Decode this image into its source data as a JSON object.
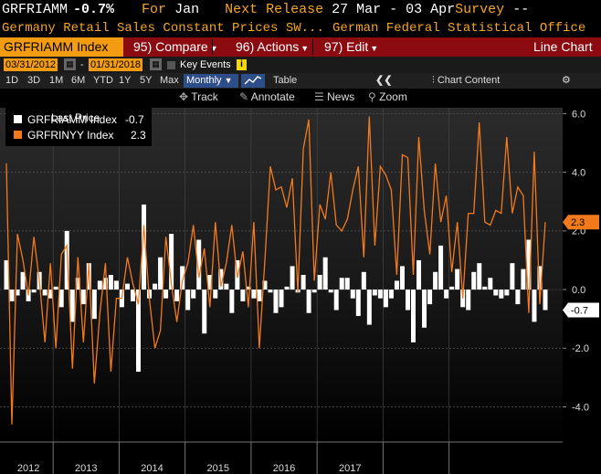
{
  "header": {
    "ticker": "GRFRIAMM",
    "value": "-0.7%",
    "for_label": "For",
    "period": "Jan",
    "next_release_label": "Next Release",
    "next_release": "27 Mar - 03 Apr",
    "survey_label": "Survey",
    "survey_value": "--"
  },
  "subheader": {
    "description": "Germany Retail Sales Constant Prices SW...",
    "source": "German Federal Statistical Office"
  },
  "menubar": {
    "security": "GRFRIAMM Index",
    "compare": "95) Compare",
    "actions": "96) Actions",
    "edit": "97) Edit",
    "chart_type": "Line Chart"
  },
  "datebar": {
    "start": "03/31/2012",
    "dash": "-",
    "end": "01/31/2018",
    "key_events": "Key Events"
  },
  "periods": {
    "items": [
      "1D",
      "3D",
      "1M",
      "6M",
      "YTD",
      "1Y",
      "5Y",
      "Max"
    ],
    "frequency": "Monthly",
    "table": "Table",
    "chart_content": "Chart Content"
  },
  "tools": {
    "track": "Track",
    "annotate": "Annotate",
    "news": "News",
    "zoom": "Zoom"
  },
  "legend": {
    "title": "Last Price",
    "items": [
      {
        "label": "GRFRIAMM Index",
        "value": "-0.7",
        "color": "#ffffff"
      },
      {
        "label": "GRFRINYY Index",
        "value": "2.3",
        "color": "#f27a1d"
      }
    ]
  },
  "colors": {
    "accent": "#f39c12",
    "menubar": "#8b0b10",
    "line": "#f27a1d",
    "bars": "#ffffff"
  },
  "chart_data": {
    "type": "bar+line",
    "x_start": "2012-03",
    "frequency": "monthly",
    "ylim": [
      -5.2,
      6.2
    ],
    "yticks": [
      "6.0",
      "4.0",
      "2.0",
      "0.0",
      "-2.0",
      "-4.0"
    ],
    "ytick_values": [
      6,
      4,
      2,
      0,
      -2,
      -4
    ],
    "xlabels": [
      "2012",
      "2013",
      "2014",
      "2015",
      "2016",
      "2017"
    ],
    "series": [
      {
        "name": "GRFRIAMM Index",
        "type": "bar",
        "last": "-0.7",
        "values": [
          1.0,
          -0.4,
          -0.2,
          0.6,
          -0.4,
          -0.1,
          0.6,
          -0.2,
          -0.3,
          0.1,
          -0.6,
          2.0,
          -1.1,
          0.4,
          -0.5,
          0.9,
          -1.0,
          0.3,
          0.4,
          0.5,
          0.3,
          -0.6,
          0.2,
          -0.4,
          -2.8,
          2.9,
          -0.3,
          0.2,
          1.1,
          -0.3,
          1.9,
          -0.4,
          0.8,
          -0.7,
          -0.3,
          1.7,
          -1.5,
          0.5,
          -0.3,
          0.7,
          0.2,
          -0.8,
          1.0,
          -0.4,
          0.1,
          -0.3,
          -0.4,
          0.3,
          -0.1,
          -0.8,
          -0.6,
          0.1,
          0.8,
          -0.1,
          0.5,
          -0.8,
          -0.1,
          0.5,
          1.1,
          -0.1,
          -0.7,
          0.4,
          0.4,
          -0.3,
          -0.9,
          0.6,
          -1.2,
          -0.2,
          -0.3,
          -0.6,
          -0.3,
          0.3,
          0.8,
          -0.7,
          -1.8,
          1.0,
          -1.3,
          -0.5,
          0.6,
          1.5,
          -0.3,
          0.1,
          0.7,
          -0.6,
          -0.7,
          0.6,
          0.9,
          0.1,
          0.4,
          -0.2,
          -0.3,
          -0.2,
          0.9,
          -0.5,
          0.7,
          1.7,
          -1.1,
          0.8,
          -0.7
        ]
      },
      {
        "name": "GRFRINYY Index",
        "type": "line",
        "last": "2.3",
        "values": [
          4.3,
          -4.6,
          1.9,
          1.0,
          -0.2,
          1.8,
          0.3,
          -1.8,
          0.9,
          -2.0,
          1.2,
          1.5,
          -2.7,
          1.1,
          -1.8,
          0.9,
          -3.2,
          -0.8,
          0.9,
          -2.8,
          -0.3,
          -0.3,
          1.1,
          0.2,
          -0.5,
          2.2,
          -0.3,
          -2.0,
          -1.4,
          1.8,
          0.2,
          -1.1,
          0.3,
          0.9,
          2.2,
          0.4,
          1.4,
          -0.6,
          2.3,
          0.1,
          0.9,
          2.2,
          0.4,
          1.3,
          -0.6,
          2.3,
          -2.0,
          1.0,
          4.2,
          3.4,
          3.5,
          2.8,
          3.8,
          -0.1,
          4.8,
          5.8,
          0.3,
          2.9,
          2.4,
          4.0,
          2.2,
          2.0,
          2.4,
          3.4,
          4.2,
          1.1,
          5.9,
          1.5,
          4.2,
          3.9,
          3.4,
          0.5,
          4.6,
          4.5,
          0.5,
          5.2,
          2.7,
          1.2,
          4.3,
          2.3,
          3.2,
          0.6,
          2.3,
          -0.3,
          2.6,
          2.6,
          5.7,
          2.3,
          2.2,
          2.7,
          2.6,
          5.2,
          2.6,
          3.5,
          3.2,
          -0.8,
          4.7,
          -0.5,
          2.3
        ]
      }
    ]
  }
}
